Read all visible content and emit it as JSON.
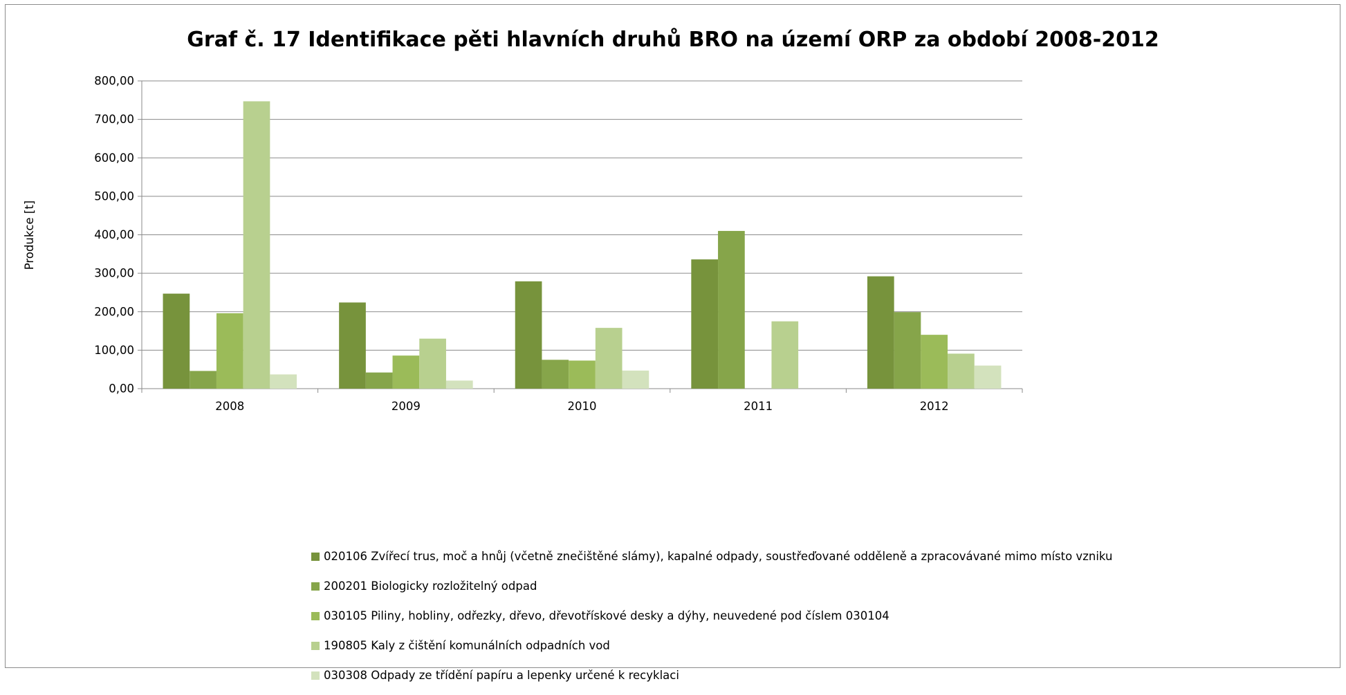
{
  "chart_data": {
    "type": "bar",
    "title": "Graf č. 17 Identifikace pěti hlavních druhů BRO na území ORP za období 2008-2012",
    "xlabel": "",
    "ylabel": "Produkce [t]",
    "ylim": [
      0,
      800
    ],
    "yticks": [
      0,
      100,
      200,
      300,
      400,
      500,
      600,
      700,
      800
    ],
    "ytick_labels": [
      "0,00",
      "100,00",
      "200,00",
      "300,00",
      "400,00",
      "500,00",
      "600,00",
      "700,00",
      "800,00"
    ],
    "grid": true,
    "legend_position": "bottom",
    "categories": [
      "2008",
      "2009",
      "2010",
      "2011",
      "2012"
    ],
    "series": [
      {
        "name": "020106 Zvířecí trus, moč a hnůj (včetně znečištěné slámy), kapalné odpady, soustřeďované odděleně a zpracovávané mimo místo vzniku",
        "color": "#77933c",
        "values": [
          247,
          224,
          279,
          336,
          292
        ]
      },
      {
        "name": "200201 Biologicky rozložitelný odpad",
        "color": "#86a54a",
        "values": [
          46,
          42,
          75,
          410,
          199
        ]
      },
      {
        "name": "030105 Piliny, hobliny, odřezky, dřevo, dřevotřískové desky a dýhy, neuvedené pod číslem 030104",
        "color": "#9bbb59",
        "values": [
          196,
          86,
          73,
          0,
          140
        ]
      },
      {
        "name": "190805 Kaly z čištění komunálních odpadních vod",
        "color": "#b8d08f",
        "values": [
          747,
          130,
          158,
          175,
          91
        ]
      },
      {
        "name": "030308 Odpady ze třídění papíru a lepenky určené k recyklaci",
        "color": "#d3e2bd",
        "values": [
          37,
          21,
          47,
          0,
          60
        ]
      }
    ]
  }
}
